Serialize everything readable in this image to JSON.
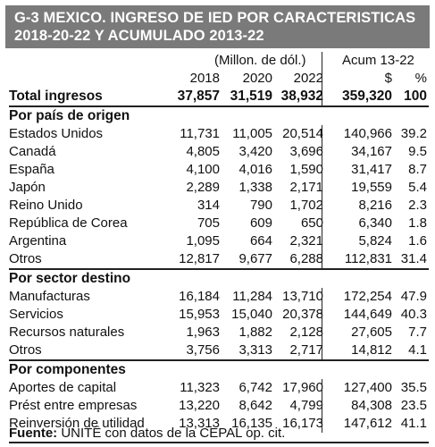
{
  "title": {
    "line1": "G-3  MEXICO. INGRESO DE IED POR CARACTERISTICAS",
    "line2": "2018-20-22 Y ACUMULADO 2013-22"
  },
  "header": {
    "units": "(Millon. de dól.)",
    "acum": "Acum 13-22",
    "years": [
      "2018",
      "2020",
      "2022"
    ],
    "col_dollar": "$",
    "col_pct": "%"
  },
  "total": {
    "label": "Total ingresos",
    "values": [
      "37,857",
      "31,519",
      "38,932",
      "359,320",
      "100"
    ]
  },
  "sections": [
    {
      "title": "Por país de origen",
      "rows": [
        {
          "label": "Estados Unidos",
          "values": [
            "11,731",
            "11,005",
            "20,514",
            "140,966",
            "39.2"
          ]
        },
        {
          "label": "Canadá",
          "values": [
            "4,805",
            "3,420",
            "3,696",
            "34,167",
            "9.5"
          ]
        },
        {
          "label": "España",
          "values": [
            "4,100",
            "4,016",
            "1,590",
            "31,417",
            "8.7"
          ]
        },
        {
          "label": "Japón",
          "values": [
            "2,289",
            "1,338",
            "2,171",
            "19,559",
            "5.4"
          ]
        },
        {
          "label": "Reino Unido",
          "values": [
            "314",
            "790",
            "1,702",
            "8,216",
            "2.3"
          ]
        },
        {
          "label": "República de Corea",
          "values": [
            "705",
            "609",
            "650",
            "6,340",
            "1.8"
          ]
        },
        {
          "label": "Argentina",
          "values": [
            "1,095",
            "664",
            "2,321",
            "5,824",
            "1.6"
          ]
        },
        {
          "label": "Otros",
          "values": [
            "12,817",
            "9,677",
            "6,288",
            "112,831",
            "31.4"
          ]
        }
      ]
    },
    {
      "title": "Por sector destino",
      "rows": [
        {
          "label": "Manufacturas",
          "values": [
            "16,184",
            "11,284",
            "13,710",
            "172,254",
            "47.9"
          ]
        },
        {
          "label": "Servicios",
          "values": [
            "15,953",
            "15,040",
            "20,378",
            "144,649",
            "40.3"
          ]
        },
        {
          "label": "Recursos naturales",
          "values": [
            "1,963",
            "1,882",
            "2,128",
            "27,605",
            "7.7"
          ]
        },
        {
          "label": "Otros",
          "values": [
            "3,756",
            "3,313",
            "2,717",
            "14,812",
            "4.1"
          ]
        }
      ]
    },
    {
      "title": "Por componentes",
      "rows": [
        {
          "label": "Aportes de capital",
          "values": [
            "11,323",
            "6,742",
            "17,960",
            "127,400",
            "35.5"
          ]
        },
        {
          "label": "Prést entre empresas",
          "values": [
            "13,220",
            "8,642",
            "4,799",
            "84,308",
            "23.5"
          ]
        },
        {
          "label": "Reinversión de utilidad",
          "values": [
            "13,313",
            "16,135",
            "16,173",
            "147,612",
            "41.1"
          ]
        }
      ]
    }
  ],
  "footer": {
    "label": "Fuente:",
    "text": " UNITË con datos de la CEPAL op. cit."
  }
}
